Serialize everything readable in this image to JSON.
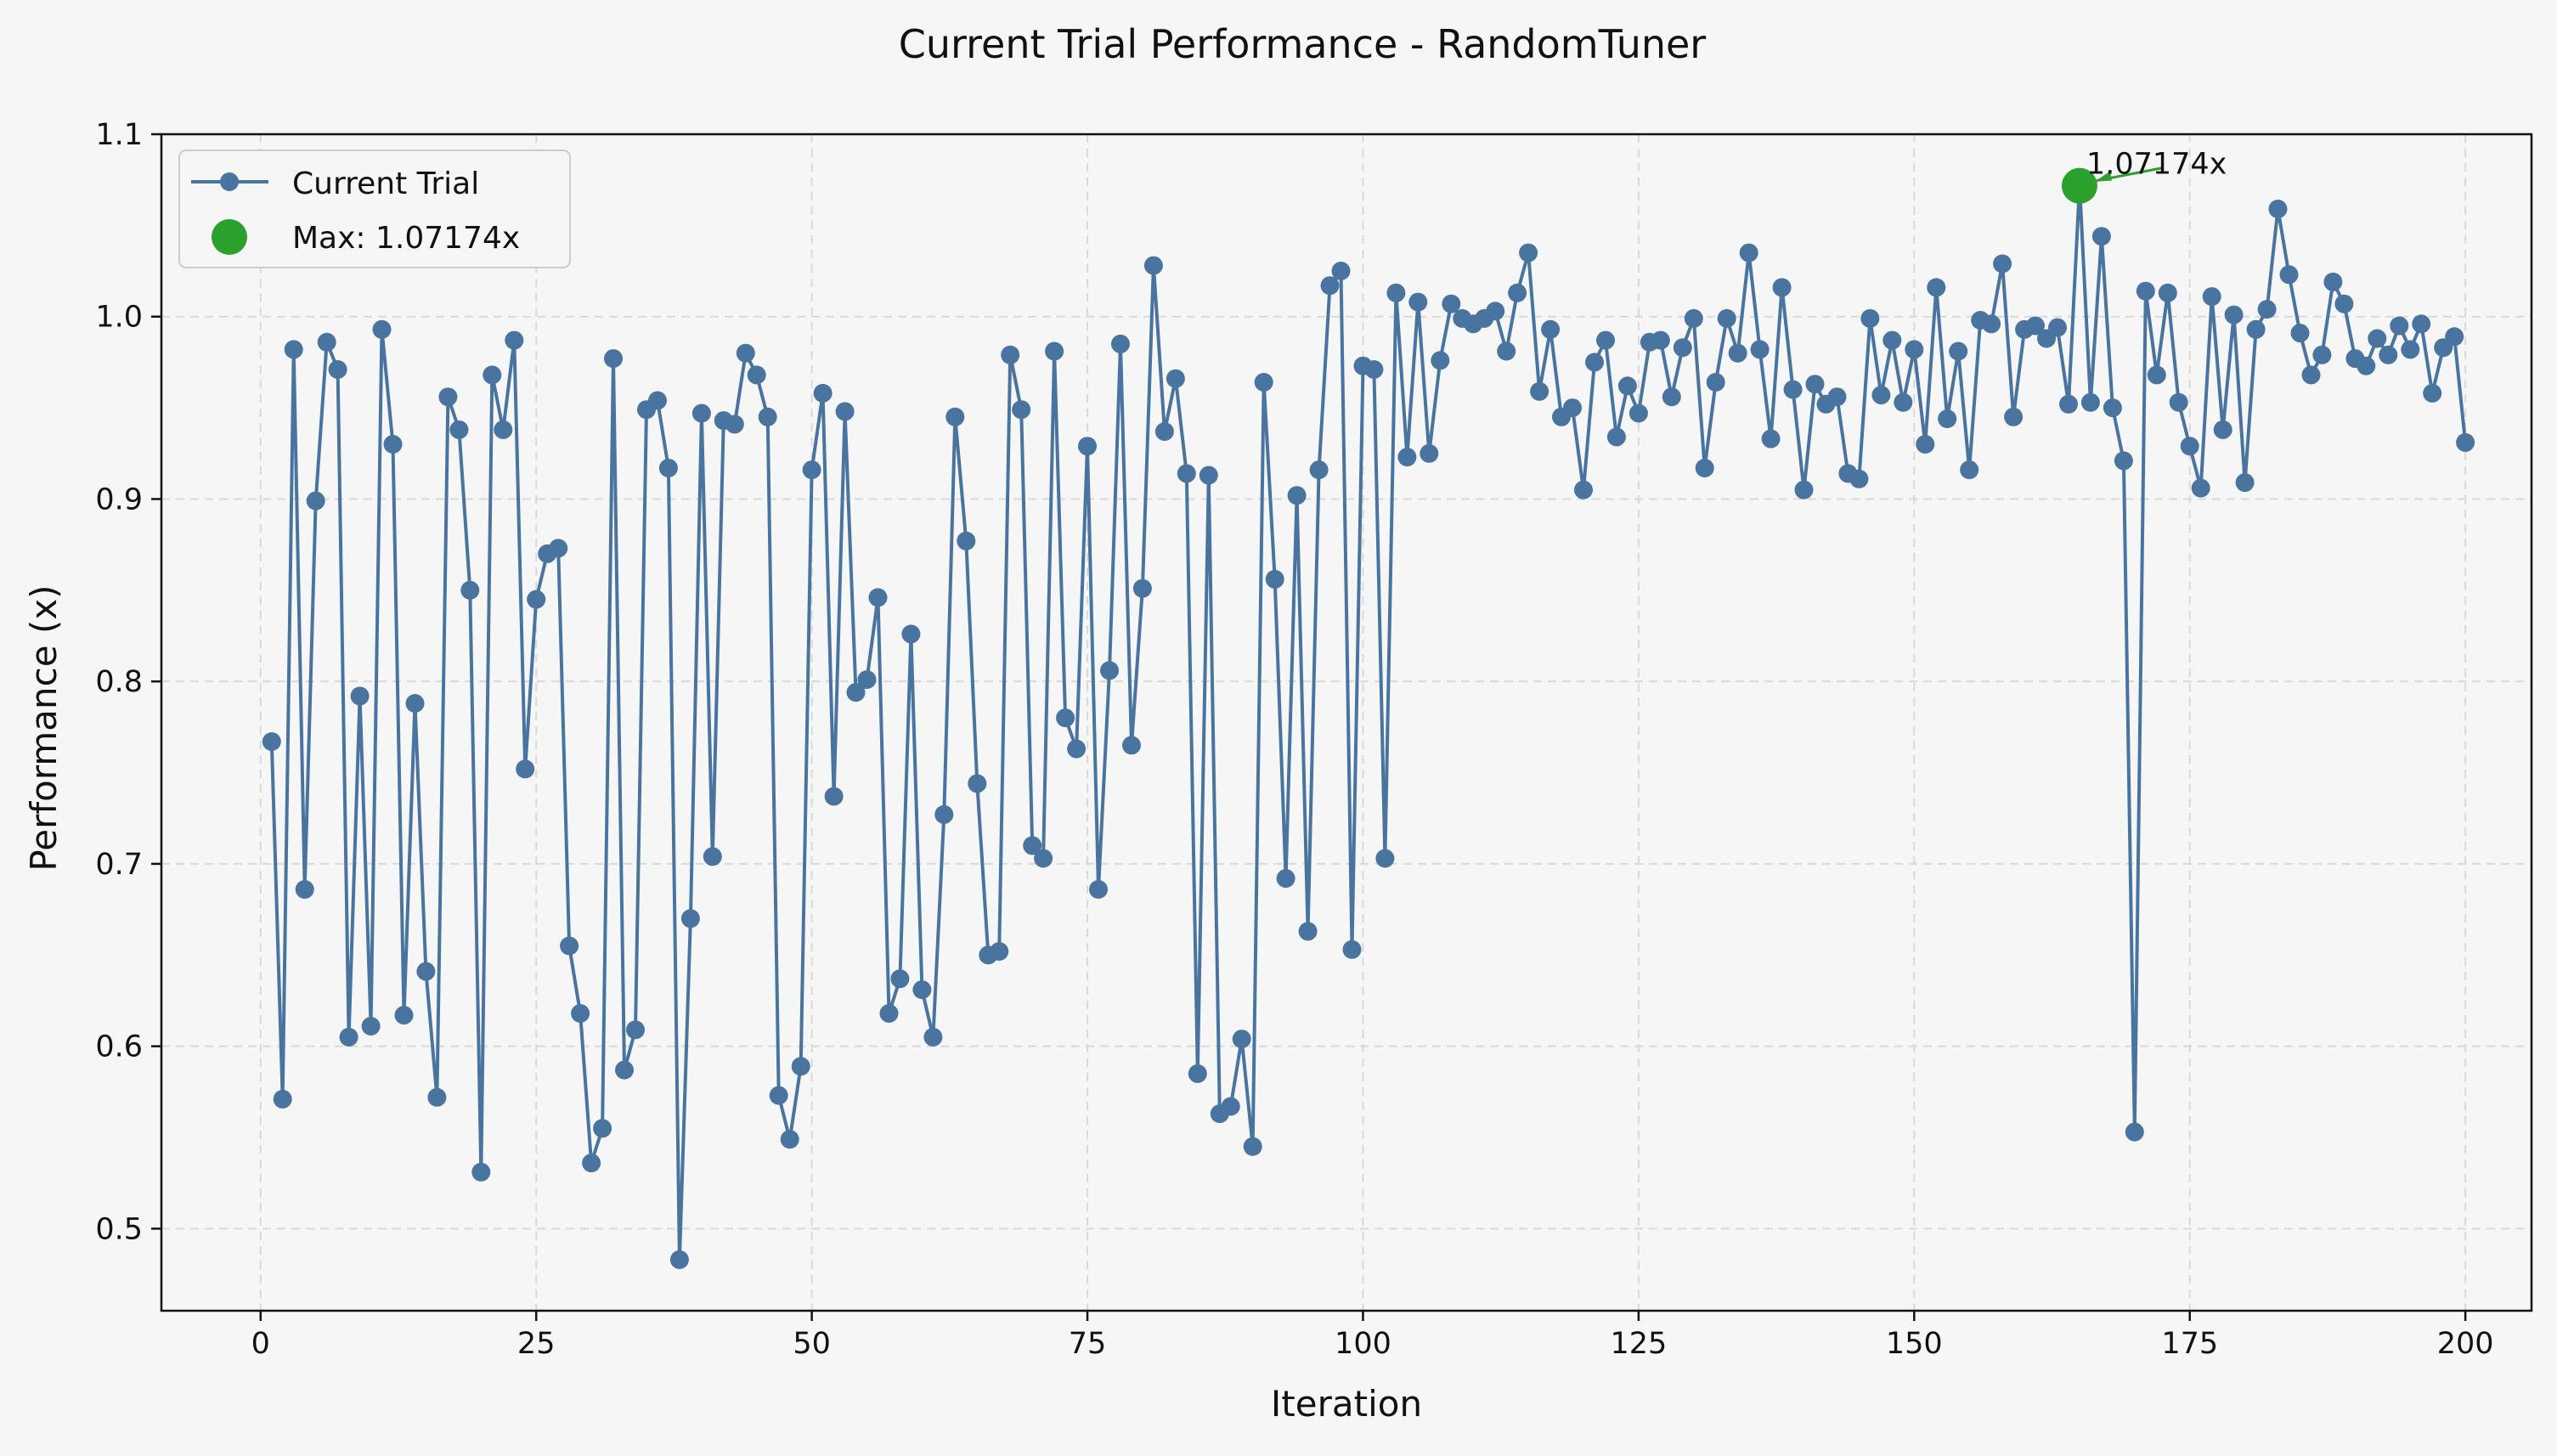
{
  "colors": {
    "background": "#f6f6f6",
    "plot_background": "#f6f6f6",
    "series_color": "#4a74a0",
    "max_color": "#2ca02c",
    "grid_color": "#d9d9d9"
  },
  "chart_data": {
    "type": "line",
    "title": "Current Trial Performance - RandomTuner",
    "xlabel": "Iteration",
    "ylabel": "Performance (x)",
    "xlim": [
      -9,
      206
    ],
    "ylim": [
      0.455,
      1.1
    ],
    "grid": true,
    "legend_position": "top-left",
    "x_ticks": [
      0,
      25,
      50,
      75,
      100,
      125,
      150,
      175,
      200
    ],
    "x_tick_labels": [
      "0",
      "25",
      "50",
      "75",
      "100",
      "125",
      "150",
      "175",
      "200"
    ],
    "y_ticks": [
      0.5,
      0.6,
      0.7,
      0.8,
      0.9,
      1.0,
      1.1
    ],
    "y_tick_labels": [
      "0.5",
      "0.6",
      "0.7",
      "0.8",
      "0.9",
      "1.0",
      "1.1"
    ],
    "series": [
      {
        "name": "Current Trial",
        "marker": "circle",
        "x_start": 1,
        "values": [
          0.767,
          0.571,
          0.982,
          0.686,
          0.899,
          0.986,
          0.971,
          0.605,
          0.792,
          0.611,
          0.993,
          0.93,
          0.617,
          0.788,
          0.641,
          0.572,
          0.956,
          0.938,
          0.85,
          0.531,
          0.968,
          0.938,
          0.987,
          0.752,
          0.845,
          0.87,
          0.873,
          0.655,
          0.618,
          0.536,
          0.555,
          0.977,
          0.587,
          0.609,
          0.949,
          0.954,
          0.917,
          0.483,
          0.67,
          0.947,
          0.704,
          0.943,
          0.941,
          0.98,
          0.968,
          0.945,
          0.573,
          0.549,
          0.589,
          0.916,
          0.958,
          0.737,
          0.948,
          0.794,
          0.801,
          0.846,
          0.618,
          0.637,
          0.826,
          0.631,
          0.605,
          0.727,
          0.945,
          0.877,
          0.744,
          0.65,
          0.652,
          0.979,
          0.949,
          0.71,
          0.703,
          0.981,
          0.78,
          0.763,
          0.929,
          0.686,
          0.806,
          0.985,
          0.765,
          0.851,
          1.028,
          0.937,
          0.966,
          0.914,
          0.585,
          0.913,
          0.563,
          0.567,
          0.604,
          0.545,
          0.964,
          0.856,
          0.692,
          0.902,
          0.663,
          0.916,
          1.017,
          1.025,
          0.653,
          0.973,
          0.971,
          0.703,
          1.013,
          0.923,
          1.008,
          0.925,
          0.976,
          1.007,
          0.999,
          0.996,
          0.999,
          1.003,
          0.981,
          1.013,
          1.035,
          0.959,
          0.993,
          0.945,
          0.95,
          0.905,
          0.975,
          0.987,
          0.934,
          0.962,
          0.947,
          0.986,
          0.987,
          0.956,
          0.983,
          0.999,
          0.917,
          0.964,
          0.999,
          0.98,
          1.035,
          0.982,
          0.933,
          1.016,
          0.96,
          0.905,
          0.963,
          0.952,
          0.956,
          0.914,
          0.911,
          0.999,
          0.957,
          0.987,
          0.953,
          0.982,
          0.93,
          1.016,
          0.944,
          0.981,
          0.916,
          0.998,
          0.996,
          1.029,
          0.945,
          0.993,
          0.995,
          0.988,
          0.994,
          0.952,
          1.072,
          0.953,
          1.044,
          0.95,
          0.921,
          0.553,
          1.014,
          0.968,
          1.013,
          0.953,
          0.929,
          0.906,
          1.011,
          0.938,
          1.001,
          0.909,
          0.993,
          1.004,
          1.059,
          1.023,
          0.991,
          0.968,
          0.979,
          1.019,
          1.007,
          0.977,
          0.973,
          0.988,
          0.979,
          0.995,
          0.982,
          0.996,
          0.958,
          0.983,
          0.989,
          0.931
        ]
      }
    ],
    "max_point": {
      "name": "Max: 1.07174x",
      "x": 165,
      "y": 1.07174,
      "annotation": "1.07174x"
    }
  }
}
